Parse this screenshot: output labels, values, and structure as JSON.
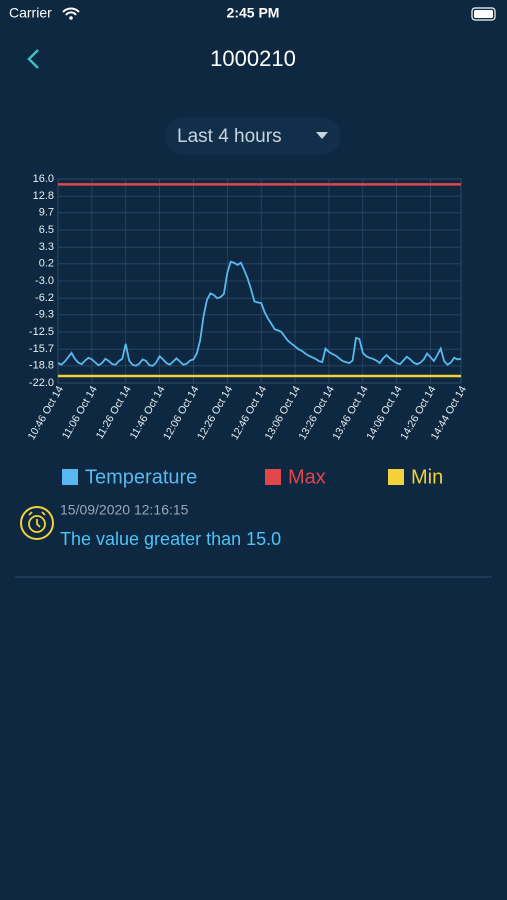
{
  "status_bar": {
    "carrier": "Carrier",
    "time": "2:45 PM"
  },
  "header": {
    "title": "1000210"
  },
  "range_selector": {
    "label": "Last 4 hours"
  },
  "chart_data": {
    "type": "line",
    "categories": [
      "10:46 Oct 14",
      null,
      null,
      null,
      null,
      null,
      null,
      null,
      null,
      null,
      "11:06 Oct 14",
      null,
      null,
      null,
      null,
      null,
      null,
      null,
      null,
      null,
      "11:26 Oct 14",
      null,
      null,
      null,
      null,
      null,
      null,
      null,
      null,
      null,
      "11:46 Oct 14",
      null,
      null,
      null,
      null,
      null,
      null,
      null,
      null,
      null,
      "12:06 Oct 14",
      null,
      null,
      null,
      null,
      null,
      null,
      null,
      null,
      null,
      "12:26 Oct 14",
      null,
      null,
      null,
      null,
      null,
      null,
      null,
      null,
      null,
      "12:46 Oct 14",
      null,
      null,
      null,
      null,
      null,
      null,
      null,
      null,
      null,
      "13:06 Oct 14",
      null,
      null,
      null,
      null,
      null,
      null,
      null,
      null,
      null,
      "13:26 Oct 14",
      null,
      null,
      null,
      null,
      null,
      null,
      null,
      null,
      null,
      "13:46 Oct 14",
      null,
      null,
      null,
      null,
      null,
      null,
      null,
      null,
      null,
      "14:06 Oct 14",
      null,
      null,
      null,
      null,
      null,
      null,
      null,
      null,
      null,
      "14:26 Oct 14",
      null,
      null,
      null,
      null,
      null,
      null,
      null,
      null,
      "14:44 Oct 14"
    ],
    "series": [
      {
        "name": "Temperature",
        "color": "#5ab8f0",
        "values": [
          -18.3,
          -18.6,
          -18.0,
          -17.2,
          -16.4,
          -17.5,
          -18.2,
          -18.5,
          -17.8,
          -17.3,
          -17.6,
          -18.2,
          -18.7,
          -18.3,
          -17.5,
          -17.9,
          -18.5,
          -18.6,
          -17.9,
          -17.5,
          -14.7,
          -17.8,
          -18.6,
          -18.8,
          -18.4,
          -17.6,
          -17.9,
          -18.7,
          -18.8,
          -18.2,
          -17.0,
          -17.6,
          -18.3,
          -18.6,
          -18.0,
          -17.4,
          -18.0,
          -18.6,
          -18.4,
          -17.8,
          -17.6,
          -16.5,
          -14.0,
          -9.5,
          -6.5,
          -5.3,
          -5.6,
          -6.2,
          -6.0,
          -5.4,
          -1.5,
          0.6,
          0.4,
          0.0,
          0.4,
          -1.0,
          -2.5,
          -4.5,
          -6.8,
          -7.0,
          -7.1,
          -8.8,
          -10.0,
          -11.0,
          -12.0,
          -12.2,
          -12.5,
          -13.4,
          -14.2,
          -14.7,
          -15.2,
          -15.7,
          -16.0,
          -16.5,
          -16.9,
          -17.2,
          -17.5,
          -17.9,
          -18.1,
          -15.6,
          -16.2,
          -16.6,
          -16.9,
          -17.4,
          -17.9,
          -18.1,
          -18.3,
          -17.8,
          -13.6,
          -13.8,
          -16.4,
          -17.0,
          -17.3,
          -17.5,
          -17.8,
          -18.3,
          -17.4,
          -16.8,
          -17.4,
          -17.9,
          -18.3,
          -18.5,
          -17.8,
          -17.1,
          -17.6,
          -18.2,
          -18.5,
          -18.2,
          -17.6,
          -16.5,
          -17.2,
          -17.9,
          -16.8,
          -15.6,
          -17.9,
          -18.6,
          -18.2,
          -17.3,
          -17.6,
          -17.5
        ]
      }
    ],
    "reference_lines": [
      {
        "name": "Max",
        "color": "#e0464b",
        "value": 15.0
      },
      {
        "name": "Min",
        "color": "#f2d13b",
        "value": -20.7
      }
    ],
    "ylim": [
      -22.0,
      16.0
    ],
    "yticks": [
      {
        "value": 16,
        "label": "16.0"
      },
      12.8,
      9.7,
      6.5,
      3.3,
      0.2,
      {
        "value": -3,
        "label": "-3.0"
      },
      -6.2,
      -9.3,
      -12.5,
      -15.7,
      -18.8,
      {
        "value": -22,
        "label": "-22.0"
      }
    ],
    "grid": true
  },
  "alert": {
    "timestamp": "15/09/2020 12:16:15",
    "message": "The value greater than 15.0"
  }
}
